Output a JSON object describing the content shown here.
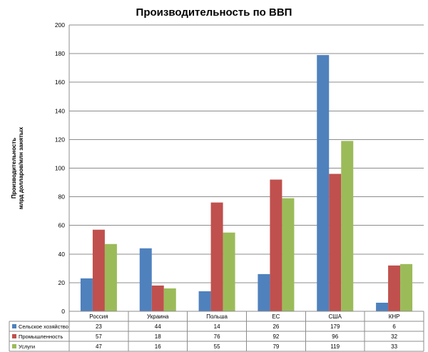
{
  "chart_data": {
    "type": "bar",
    "title": "Производительность по ВВП",
    "ylabel_lines": [
      "Производительность",
      "млрд долларов/млн занятых"
    ],
    "categories": [
      "Россия",
      "Украина",
      "Польша",
      "ЕС",
      "США",
      "КНР"
    ],
    "series": [
      {
        "name": "Сельское хозяйство",
        "values": [
          23,
          44,
          14,
          26,
          179,
          6
        ],
        "color": "#4F81BD"
      },
      {
        "name": "Промышленность",
        "values": [
          57,
          18,
          76,
          92,
          96,
          32
        ],
        "color": "#C0504D"
      },
      {
        "name": "Услуги",
        "values": [
          47,
          16,
          55,
          79,
          119,
          33
        ],
        "color": "#9BBB59"
      }
    ],
    "ylim": [
      0,
      200
    ],
    "yticks": [
      0,
      20,
      40,
      60,
      80,
      100,
      120,
      140,
      160,
      180,
      200
    ],
    "grid": true,
    "legend": "data-table-left"
  }
}
